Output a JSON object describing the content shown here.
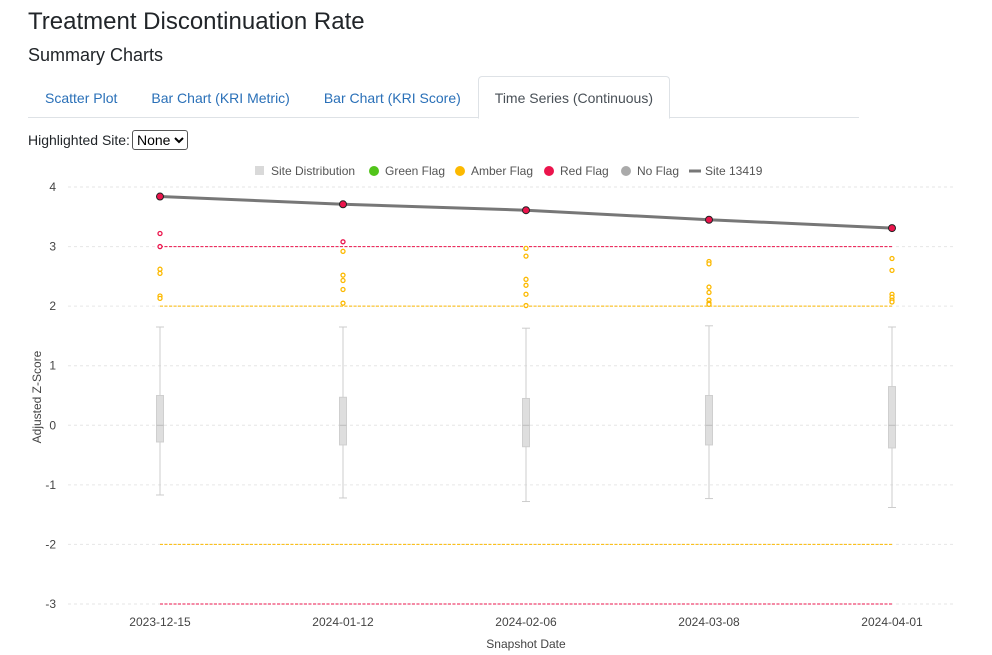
{
  "page": {
    "title": "Treatment Discontinuation Rate",
    "subtitle": "Summary Charts"
  },
  "tabs": [
    {
      "label": "Scatter Plot",
      "active": false
    },
    {
      "label": "Bar Chart (KRI Metric)",
      "active": false
    },
    {
      "label": "Bar Chart (KRI Score)",
      "active": false
    },
    {
      "label": "Time Series (Continuous)",
      "active": true
    }
  ],
  "highlight": {
    "label": "Highlighted Site:",
    "selected": "None",
    "options": [
      "None"
    ]
  },
  "chart_data": {
    "type": "line",
    "xlabel": "Snapshot Date",
    "ylabel": "Adjusted Z-Score",
    "x": [
      "2023-12-15",
      "2024-01-12",
      "2024-02-06",
      "2024-03-08",
      "2024-04-01"
    ],
    "ylim": [
      -3,
      4
    ],
    "yticks": [
      4,
      3,
      2,
      1,
      0,
      -1,
      -2,
      -3
    ],
    "grid": true,
    "legend_position": "top",
    "legend": [
      {
        "label": "Site Distribution",
        "symbol": "square",
        "color": "#d9d9d9"
      },
      {
        "label": "Green Flag",
        "symbol": "circle",
        "color": "#52c41a"
      },
      {
        "label": "Amber Flag",
        "symbol": "circle",
        "color": "#fcb900"
      },
      {
        "label": "Red Flag",
        "symbol": "circle",
        "color": "#eb144c"
      },
      {
        "label": "No Flag",
        "symbol": "circle",
        "color": "#aaaaaa"
      },
      {
        "label": "Site 13419",
        "symbol": "line",
        "color": "#777777"
      }
    ],
    "thresholds": [
      {
        "value": 3,
        "color": "#eb144c"
      },
      {
        "value": 2,
        "color": "#fcb900"
      },
      {
        "value": -2,
        "color": "#fcb900"
      },
      {
        "value": -3,
        "color": "#eb144c"
      }
    ],
    "distribution": [
      {
        "min": -1.17,
        "q1": -0.28,
        "median": 0.0,
        "q3": 0.5,
        "max": 1.65
      },
      {
        "min": -1.22,
        "q1": -0.33,
        "median": 0.0,
        "q3": 0.47,
        "max": 1.65
      },
      {
        "min": -1.28,
        "q1": -0.36,
        "median": 0.0,
        "q3": 0.45,
        "max": 1.63
      },
      {
        "min": -1.23,
        "q1": -0.33,
        "median": 0.0,
        "q3": 0.5,
        "max": 1.67
      },
      {
        "min": -1.38,
        "q1": -0.38,
        "median": 0.0,
        "q3": 0.65,
        "max": 1.65
      }
    ],
    "flagged_points": [
      {
        "x": "2023-12-15",
        "values": [
          3.22,
          3.0
        ],
        "flag": "red"
      },
      {
        "x": "2023-12-15",
        "values": [
          2.62,
          2.55,
          2.17,
          2.13
        ],
        "flag": "amber"
      },
      {
        "x": "2024-01-12",
        "values": [
          3.08
        ],
        "flag": "red"
      },
      {
        "x": "2024-01-12",
        "values": [
          2.92,
          2.52,
          2.43,
          2.28,
          2.05
        ],
        "flag": "amber"
      },
      {
        "x": "2024-02-06",
        "values": [
          2.97,
          2.84,
          2.45,
          2.35,
          2.2,
          2.01
        ],
        "flag": "amber"
      },
      {
        "x": "2024-03-08",
        "values": [
          2.75,
          2.71,
          2.32,
          2.23,
          2.1,
          2.05,
          2.03
        ],
        "flag": "amber"
      },
      {
        "x": "2024-04-01",
        "values": [
          2.8,
          2.6,
          2.2,
          2.15,
          2.1,
          2.07
        ],
        "flag": "amber"
      }
    ],
    "series": [
      {
        "name": "Site 13419",
        "values": [
          3.84,
          3.71,
          3.61,
          3.45,
          3.31
        ],
        "color": "#777777",
        "marker_color": "#eb144c"
      }
    ]
  }
}
